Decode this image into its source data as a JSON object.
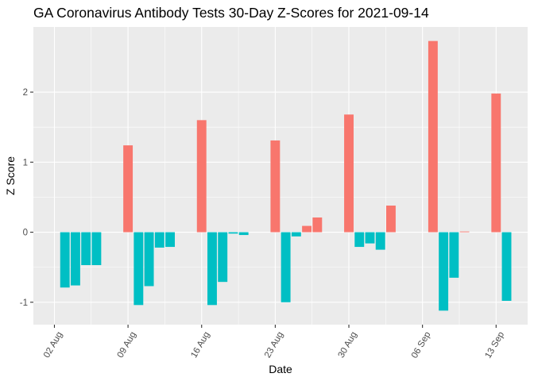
{
  "chart_data": {
    "type": "bar",
    "title": "GA Coronavirus Antibody Tests 30-Day Z-Scores for 2021-09-14",
    "xlabel": "Date",
    "ylabel": "Z Score",
    "x_range": [
      "2021-07-31",
      "2021-09-16"
    ],
    "ylim": [
      -1.32,
      2.93
    ],
    "y_ticks": [
      -1,
      0,
      1,
      2
    ],
    "y_tick_labels": [
      "-1",
      "0",
      "1",
      "2"
    ],
    "x_ticks": [
      "2021-08-02",
      "2021-08-09",
      "2021-08-16",
      "2021-08-23",
      "2021-08-30",
      "2021-09-06",
      "2021-09-13"
    ],
    "x_tick_labels": [
      "02 Aug",
      "09 Aug",
      "16 Aug",
      "23 Aug",
      "30 Aug",
      "06 Sep",
      "13 Sep"
    ],
    "grid": true,
    "legend": "none",
    "colors": {
      "positive": "#F8766D",
      "negative": "#00BFC4",
      "panel": "#EBEBEB",
      "grid": "#FFFFFF"
    },
    "data": [
      {
        "x": "2021-08-03",
        "y": -0.79
      },
      {
        "x": "2021-08-04",
        "y": -0.76
      },
      {
        "x": "2021-08-05",
        "y": -0.47
      },
      {
        "x": "2021-08-06",
        "y": -0.47
      },
      {
        "x": "2021-08-09",
        "y": 1.24
      },
      {
        "x": "2021-08-10",
        "y": -1.04
      },
      {
        "x": "2021-08-11",
        "y": -0.77
      },
      {
        "x": "2021-08-12",
        "y": -0.22
      },
      {
        "x": "2021-08-13",
        "y": -0.21
      },
      {
        "x": "2021-08-16",
        "y": 1.6
      },
      {
        "x": "2021-08-17",
        "y": -1.04
      },
      {
        "x": "2021-08-18",
        "y": -0.71
      },
      {
        "x": "2021-08-19",
        "y": -0.02
      },
      {
        "x": "2021-08-20",
        "y": -0.04
      },
      {
        "x": "2021-08-23",
        "y": 1.31
      },
      {
        "x": "2021-08-24",
        "y": -1.0
      },
      {
        "x": "2021-08-25",
        "y": -0.06
      },
      {
        "x": "2021-08-26",
        "y": 0.09
      },
      {
        "x": "2021-08-27",
        "y": 0.21
      },
      {
        "x": "2021-08-30",
        "y": 1.68
      },
      {
        "x": "2021-08-31",
        "y": -0.21
      },
      {
        "x": "2021-09-01",
        "y": -0.16
      },
      {
        "x": "2021-09-02",
        "y": -0.25
      },
      {
        "x": "2021-09-03",
        "y": 0.38
      },
      {
        "x": "2021-09-07",
        "y": 2.73
      },
      {
        "x": "2021-09-08",
        "y": -1.12
      },
      {
        "x": "2021-09-09",
        "y": -0.65
      },
      {
        "x": "2021-09-10",
        "y": 0.01
      },
      {
        "x": "2021-09-13",
        "y": 1.98
      },
      {
        "x": "2021-09-14",
        "y": -0.98
      }
    ]
  }
}
